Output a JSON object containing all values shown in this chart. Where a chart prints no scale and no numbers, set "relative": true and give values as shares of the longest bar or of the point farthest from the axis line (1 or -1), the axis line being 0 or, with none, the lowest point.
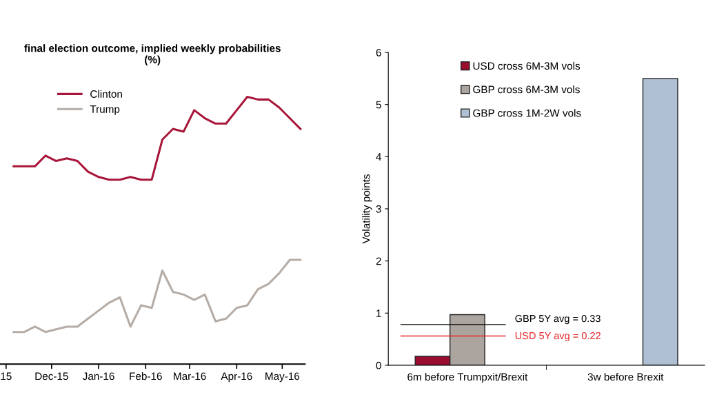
{
  "chart_data": [
    {
      "type": "line",
      "title": "final election outcome, implied weekly probabilities\n(%)",
      "relative": true,
      "legend": "top left",
      "x": [
        "2015-11-06",
        "2015-11-13",
        "2015-11-20",
        "2015-11-27",
        "2015-12-04",
        "2015-12-11",
        "2015-12-18",
        "2015-12-25",
        "2016-01-01",
        "2016-01-08",
        "2016-01-15",
        "2016-01-22",
        "2016-01-29",
        "2016-02-05",
        "2016-02-12",
        "2016-02-19",
        "2016-02-26",
        "2016-03-04",
        "2016-03-11",
        "2016-03-18",
        "2016-03-25",
        "2016-04-01",
        "2016-04-08",
        "2016-04-15",
        "2016-04-22",
        "2016-04-29",
        "2016-05-06",
        "2016-05-13"
      ],
      "xlim": [
        "2015-10-28",
        "2016-05-16"
      ],
      "xticks": [
        {
          "value": "2015-11-01",
          "label": "15"
        },
        {
          "value": "2015-12-01",
          "label": "Dec-15"
        },
        {
          "value": "2016-01-01",
          "label": "Jan-16"
        },
        {
          "value": "2016-02-01",
          "label": "Feb-16"
        },
        {
          "value": "2016-03-01",
          "label": "Mar-16"
        },
        {
          "value": "2016-04-01",
          "label": "Apr-16"
        },
        {
          "value": "2016-05-01",
          "label": "May-16"
        }
      ],
      "series": [
        {
          "name": "Clinton",
          "color": "#a8163a",
          "values": [
            0.74,
            0.74,
            0.74,
            0.78,
            0.76,
            0.77,
            0.76,
            0.72,
            0.7,
            0.69,
            0.69,
            0.7,
            0.69,
            0.69,
            0.84,
            0.88,
            0.87,
            0.95,
            0.92,
            0.9,
            0.9,
            0.95,
            1.0,
            0.99,
            0.99,
            0.96,
            0.92,
            0.88
          ]
        },
        {
          "name": "Trump",
          "color": "#b5aca6",
          "values": [
            0.12,
            0.12,
            0.14,
            0.12,
            0.13,
            0.14,
            0.14,
            0.17,
            0.2,
            0.23,
            0.25,
            0.14,
            0.22,
            0.21,
            0.35,
            0.27,
            0.26,
            0.24,
            0.26,
            0.16,
            0.17,
            0.21,
            0.22,
            0.28,
            0.3,
            0.34,
            0.39,
            0.39
          ]
        }
      ]
    },
    {
      "type": "bar",
      "ylabel": "Volatility points",
      "legend": "top",
      "categories": [
        "6m before Trumpxit/Brexit",
        "3w before Brexit"
      ],
      "ylim": [
        0,
        6
      ],
      "yticks": [
        0,
        1,
        2,
        3,
        4,
        5,
        6
      ],
      "series": [
        {
          "name": "USD cross 6M-3M vols",
          "color": "#9b0d2e",
          "values": [
            0.17,
            null
          ]
        },
        {
          "name": "GBP cross 6M-3M vols",
          "color": "#aca49e",
          "values": [
            0.97,
            null
          ]
        },
        {
          "name": "GBP cross 1M-2W vols",
          "color": "#b0c0d4",
          "values": [
            null,
            5.5
          ]
        }
      ],
      "ref_lines": [
        {
          "axis": "y",
          "value": 0.78,
          "color": "#000000"
        },
        {
          "axis": "y",
          "value": 0.56,
          "color": "#e8262b"
        }
      ],
      "annotations": [
        "GBP 5Y avg = 0.33",
        "USD 5Y avg = 0.22"
      ]
    }
  ]
}
